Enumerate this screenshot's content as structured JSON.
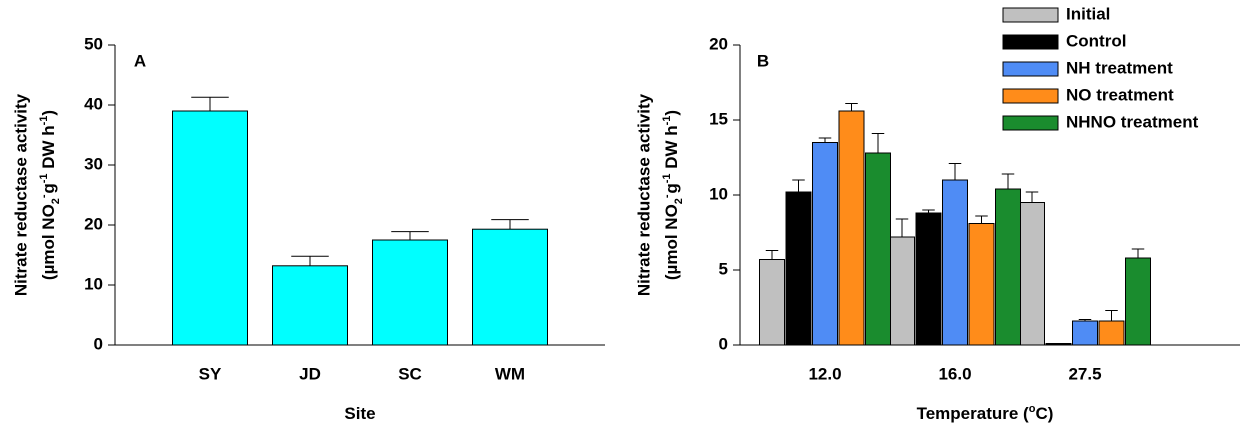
{
  "chart_data": [
    {
      "type": "bar",
      "panel_label": "A",
      "y_label": "Nitrate reductase activity",
      "y_label_unit": [
        "(µmol NO",
        "2",
        "-",
        " g",
        "-1",
        " DW h",
        "-1",
        ")"
      ],
      "x_label": [
        "Site"
      ],
      "categories": [
        "SY",
        "JD",
        "SC",
        "WM"
      ],
      "series": [
        {
          "color": "#00ffff",
          "values": [
            39,
            13.2,
            17.5,
            19.3
          ],
          "errors": [
            2.3,
            1.6,
            1.4,
            1.6
          ]
        }
      ],
      "ylim": [
        0,
        50
      ],
      "yticks": [
        0,
        10,
        20,
        30,
        40,
        50
      ]
    },
    {
      "type": "bar",
      "panel_label": "B",
      "y_label": "Nitrate reductase activity",
      "y_label_unit": [
        "(µmol NO",
        "2",
        "-",
        " g",
        "-1",
        " DW h",
        "-1",
        ")"
      ],
      "x_label": [
        "Temperature (",
        "o",
        "C)"
      ],
      "categories": [
        "12.0",
        "16.0",
        "27.5"
      ],
      "series": [
        {
          "name": "Initial",
          "color": "#c0c0c0",
          "values": [
            5.7,
            7.2,
            9.5
          ],
          "errors": [
            0.6,
            1.2,
            0.7
          ]
        },
        {
          "name": "Control",
          "color": "#000000",
          "values": [
            10.2,
            8.8,
            0.1
          ],
          "errors": [
            0.8,
            0.2,
            0
          ]
        },
        {
          "name": "NH treatment",
          "color": "#4f8cf5",
          "values": [
            13.5,
            11.0,
            1.6
          ],
          "errors": [
            0.3,
            1.1,
            0.1
          ]
        },
        {
          "name": "NO treatment",
          "color": "#ff8c1a",
          "values": [
            15.6,
            8.1,
            1.6
          ],
          "errors": [
            0.5,
            0.5,
            0.7
          ]
        },
        {
          "name": "NHNO treatment",
          "color": "#1a8c2e",
          "values": [
            12.8,
            10.4,
            5.8
          ],
          "errors": [
            1.3,
            1.0,
            0.6
          ]
        }
      ],
      "ylim": [
        0,
        20
      ],
      "yticks": [
        0,
        5,
        10,
        15,
        20
      ],
      "legend": "top-right"
    }
  ]
}
